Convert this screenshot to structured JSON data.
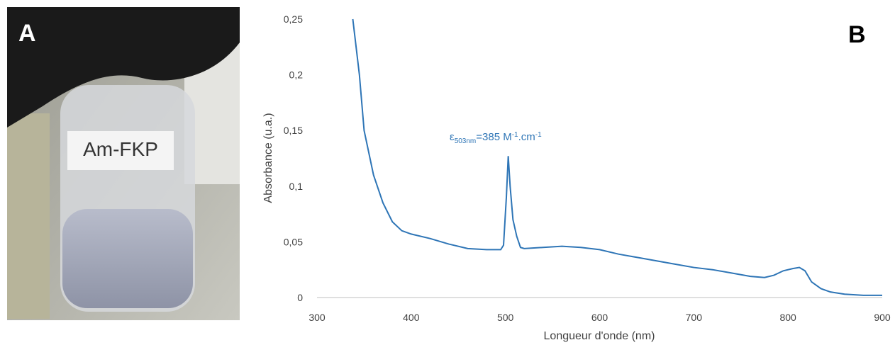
{
  "panels": {
    "a_label": "A",
    "b_label": "B",
    "vial_label": "Am-FKP"
  },
  "chart_data": {
    "type": "line",
    "xlabel": "Longueur d'onde (nm)",
    "ylabel": "Absorbance (u.a.)",
    "annotation": {
      "symbol": "ε",
      "sub": "503nm",
      "text1": "=385 M",
      "sup1": "-1",
      "text2": ".cm",
      "sup2": "-1"
    },
    "x": [
      338,
      345,
      350,
      360,
      370,
      380,
      390,
      400,
      420,
      440,
      460,
      480,
      495,
      498,
      501,
      503,
      505,
      508,
      512,
      516,
      520,
      540,
      560,
      580,
      600,
      620,
      640,
      660,
      680,
      700,
      720,
      740,
      760,
      775,
      785,
      795,
      805,
      812,
      818,
      825,
      835,
      845,
      860,
      880,
      900
    ],
    "series": [
      {
        "name": "Absorbance",
        "color": "#2e75b6",
        "values": [
          0.25,
          0.2,
          0.15,
          0.11,
          0.085,
          0.068,
          0.06,
          0.057,
          0.053,
          0.048,
          0.044,
          0.043,
          0.043,
          0.047,
          0.09,
          0.127,
          0.1,
          0.07,
          0.055,
          0.045,
          0.044,
          0.045,
          0.046,
          0.045,
          0.043,
          0.039,
          0.036,
          0.033,
          0.03,
          0.027,
          0.025,
          0.022,
          0.019,
          0.018,
          0.02,
          0.024,
          0.026,
          0.027,
          0.024,
          0.014,
          0.008,
          0.005,
          0.003,
          0.002,
          0.002
        ]
      }
    ],
    "xlim": [
      300,
      900
    ],
    "xticks": [
      300,
      400,
      500,
      600,
      700,
      800,
      900
    ],
    "ylim": [
      0,
      0.25
    ],
    "yticks": [
      0,
      {
        "value": 0.05,
        "label": "0,05"
      },
      {
        "value": 0.1,
        "label": "0,1"
      },
      {
        "value": 0.15,
        "label": "0,15"
      },
      {
        "value": 0.2,
        "label": "0,2"
      },
      {
        "value": 0.25,
        "label": "0,25"
      }
    ],
    "grid": false
  }
}
